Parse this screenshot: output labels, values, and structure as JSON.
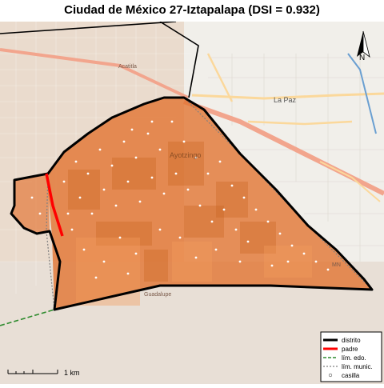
{
  "title": "Ciudad de México 27-Iztapalapa (DSI = 0.932)",
  "north_label": "N",
  "scale_label": "1 km",
  "place_labels": {
    "acatitla": "Acatitla",
    "la_paz": "La Paz",
    "ayotzingo": "Ayotzingo",
    "guadalupe": "Guadalupe",
    "mn": "MN"
  },
  "legend": [
    {
      "label": "distrito",
      "color": "#000000",
      "style": "thick"
    },
    {
      "label": "padre",
      "color": "#ff0000",
      "style": "thick"
    },
    {
      "label": "lím. edo.",
      "color": "#2e8b2e",
      "style": "dashed"
    },
    {
      "label": "lím. munic.",
      "color": "#808080",
      "style": "dotted"
    },
    {
      "label": "casilla",
      "color": "#ffffff",
      "style": "point"
    }
  ],
  "colors": {
    "district_fill": "#e2722e",
    "basemap": "#eadbcd",
    "urban": "#e9d3c4",
    "road_major": "#f2a58d",
    "road_primary": "#fbd89b",
    "state_line": "#2e8b2e"
  }
}
